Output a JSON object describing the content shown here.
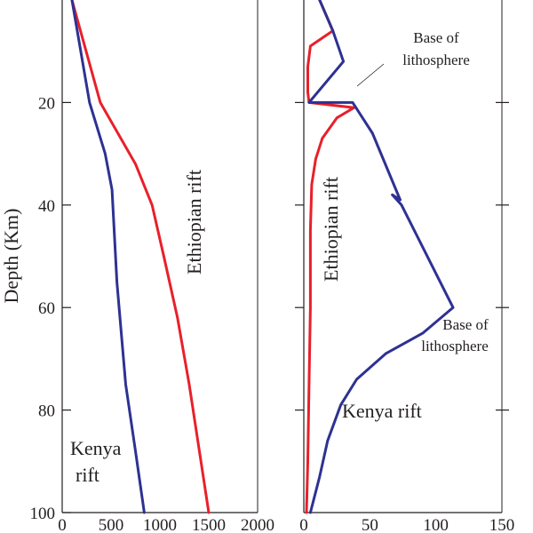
{
  "colors": {
    "ethiopian": "#e8202a",
    "kenya": "#2e3192",
    "axis": "#231f20"
  },
  "chart_data": [
    {
      "type": "line",
      "xlabel": "",
      "ylabel": "Depth (Km)",
      "xlim": [
        0,
        2000
      ],
      "ylim": [
        0,
        100
      ],
      "y_inverted": true,
      "xticks": [
        "0",
        "500",
        "1000",
        "1500",
        "2000"
      ],
      "xtick_values": [
        0,
        500,
        1000,
        1500,
        2000
      ],
      "yticks": [
        "20",
        "40",
        "60",
        "80",
        "100"
      ],
      "ytick_values": [
        20,
        40,
        60,
        80,
        100
      ],
      "grid": false,
      "series": [
        {
          "name": "Ethiopian rift",
          "color": "#e8202a",
          "points": [
            [
              100,
              0
            ],
            [
              390,
              20
            ],
            [
              750,
              32
            ],
            [
              920,
              40
            ],
            [
              1040,
              50
            ],
            [
              1180,
              62
            ],
            [
              1300,
              75
            ],
            [
              1420,
              90
            ],
            [
              1500,
              100
            ]
          ]
        },
        {
          "name": "Kenya rift",
          "color": "#2e3192",
          "points": [
            [
              100,
              0
            ],
            [
              280,
              20
            ],
            [
              440,
              30
            ],
            [
              510,
              37
            ],
            [
              560,
              55
            ],
            [
              650,
              75
            ],
            [
              750,
              88
            ],
            [
              840,
              100
            ]
          ]
        }
      ]
    },
    {
      "type": "line",
      "xlabel": "",
      "ylabel": "",
      "xlim": [
        0,
        150
      ],
      "ylim": [
        0,
        100
      ],
      "y_inverted": true,
      "xticks": [
        "0",
        "50",
        "100",
        "150"
      ],
      "xtick_values": [
        0,
        50,
        100,
        150
      ],
      "yticks": [],
      "ytick_values": [
        20,
        40,
        60,
        80
      ],
      "grid": false,
      "series": [
        {
          "name": "Ethiopian rift",
          "color": "#e8202a",
          "points": [
            [
              12,
              0
            ],
            [
              22,
              6
            ],
            [
              5,
              9
            ],
            [
              3,
              13
            ],
            [
              3,
              18
            ],
            [
              4,
              20
            ],
            [
              38,
              21
            ],
            [
              25,
              23
            ],
            [
              14,
              27
            ],
            [
              9,
              31
            ],
            [
              6,
              36
            ],
            [
              5,
              45
            ],
            [
              5,
              60
            ],
            [
              4,
              75
            ],
            [
              3,
              90
            ],
            [
              2,
              100
            ]
          ]
        },
        {
          "name": "Kenya rift",
          "color": "#2e3192",
          "points": [
            [
              12,
              0
            ],
            [
              22,
              6
            ],
            [
              30,
              12
            ],
            [
              4,
              20
            ],
            [
              37,
              20
            ],
            [
              52,
              26
            ],
            [
              73,
              39
            ],
            [
              67,
              38
            ],
            [
              74,
              40
            ],
            [
              113,
              60
            ],
            [
              90,
              65
            ],
            [
              62,
              69
            ],
            [
              40,
              74
            ],
            [
              28,
              79
            ],
            [
              18,
              86
            ],
            [
              12,
              93
            ],
            [
              5,
              100
            ]
          ]
        }
      ]
    }
  ],
  "labels": {
    "left_ethiopian": "Ethiopian rift",
    "left_kenya_line1": "Kenya",
    "left_kenya_line2": "rift",
    "right_ethiopian": "Ethiopian rift",
    "right_kenya": "Kenya rift",
    "annotation_top_line1": "Base of",
    "annotation_top_line2": "lithosphere",
    "annotation_mid_line1": "Base of",
    "annotation_mid_line2": "lithosphere"
  }
}
